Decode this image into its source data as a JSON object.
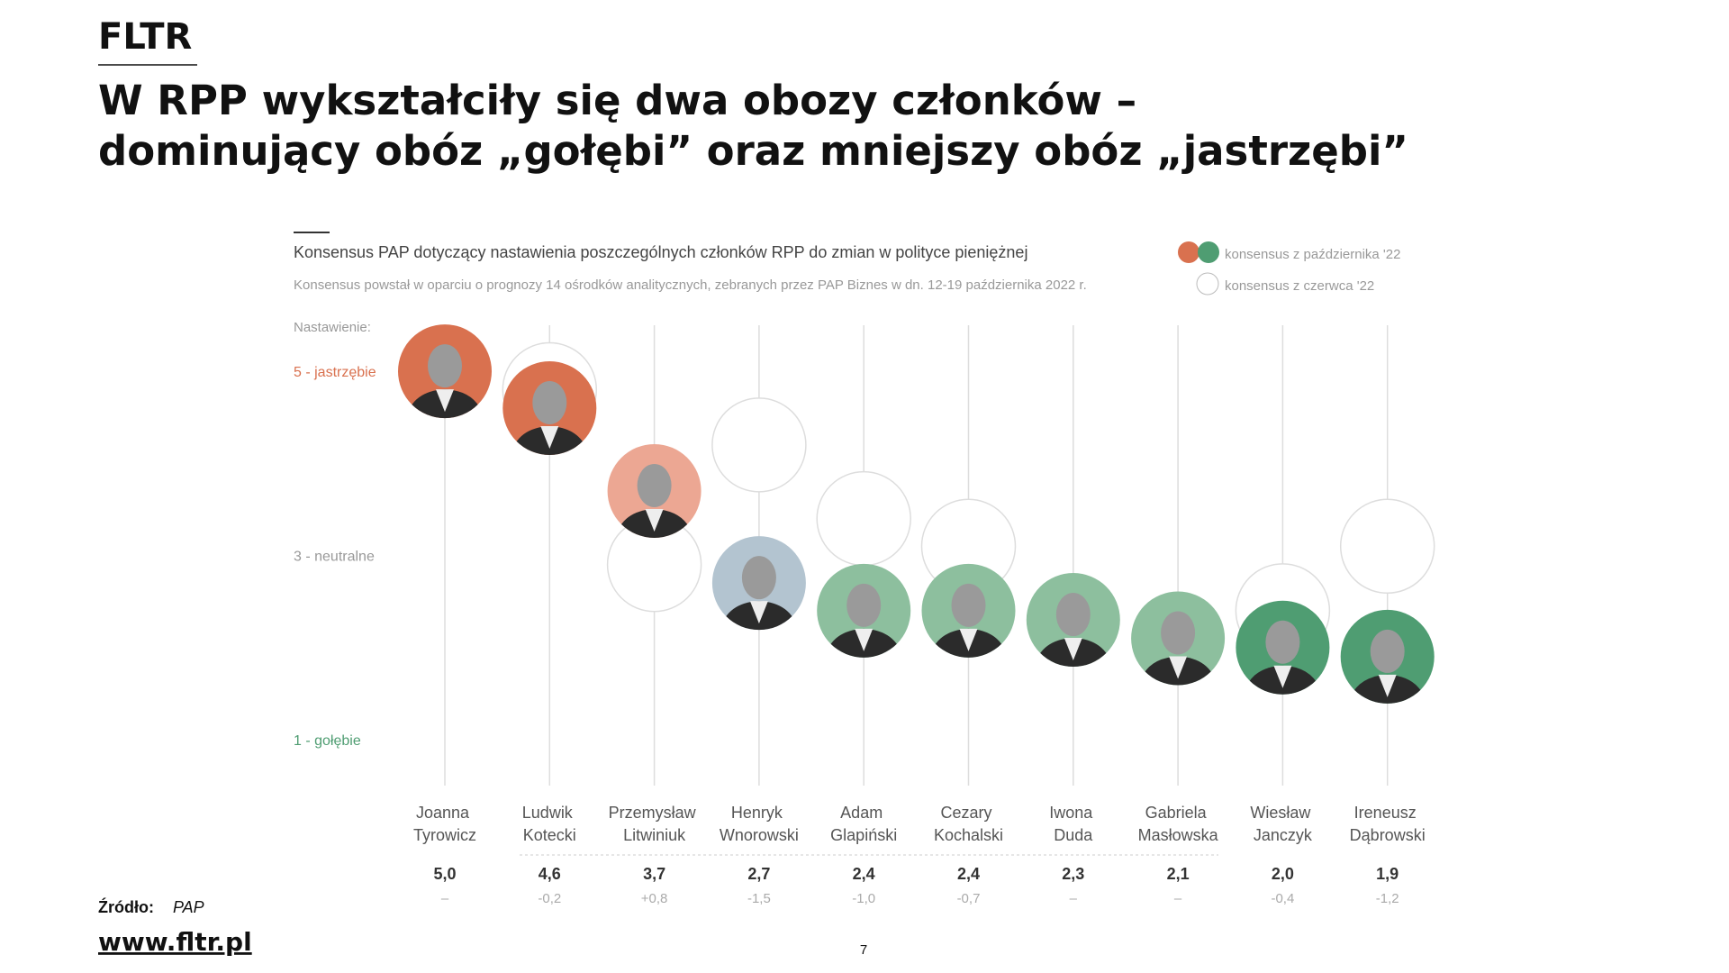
{
  "header": {
    "brand": "FLTR",
    "title_lines": [
      "W RPP wykształciły się dwa obozy członków –",
      "dominujący obóz „gołębi” oraz mniejszy obóz „jastrzębi”"
    ]
  },
  "chart_data": {
    "type": "dot",
    "title": "Konsensus PAP dotyczący nastawienia poszczególnych członków RPP do zmian w polityce pieniężnej",
    "subtitle": "Konsensus powstał w oparciu o prognozy 14 ośrodków analitycznych, zebranych przez PAP Biznes w dn. 12-19 października 2022 r.",
    "y_label": "Nastawienie:",
    "categories": [
      "Joanna Tyrowicz",
      "Ludwik Kotecki",
      "Przemysław Litwiniuk",
      "Henryk Wnorowski",
      "Adam Glapiński",
      "Cezary Kochalski",
      "Iwona Duda",
      "Gabriela Masłowska",
      "Wiesław Janczyk",
      "Ireneusz Dąbrowski"
    ],
    "series": [
      {
        "name": "konsensus z października '22",
        "colors": [
          "#d9714f",
          "#d9714f",
          "#eca793",
          "#b3c4d0",
          "#8dbf9e",
          "#8dbf9e",
          "#8dbf9e",
          "#8dbf9e",
          "#4f9d72",
          "#4f9d72"
        ],
        "values": [
          5.0,
          4.6,
          3.7,
          2.7,
          2.4,
          2.4,
          2.3,
          2.1,
          2.0,
          1.9
        ],
        "value_labels": [
          "5,0",
          "4,6",
          "3,7",
          "2,7",
          "2,4",
          "2,4",
          "2,3",
          "2,1",
          "2,0",
          "1,9"
        ]
      },
      {
        "name": "konsensus z czerwca '22",
        "color": "#ffffff",
        "values": [
          null,
          4.8,
          2.9,
          4.2,
          3.4,
          3.1,
          null,
          null,
          2.4,
          3.1
        ]
      }
    ],
    "changes": {
      "values": [
        null,
        -0.2,
        0.8,
        -1.5,
        -1.0,
        -0.7,
        null,
        null,
        -0.4,
        -1.2
      ],
      "value_labels": [
        "–",
        "-0,2",
        "+0,8",
        "-1,5",
        "-1,0",
        "-0,7",
        "–",
        "–",
        "-0,4",
        "-1,2"
      ]
    },
    "ylim": [
      0.5,
      5.5
    ],
    "yticks": [
      {
        "value": 5,
        "label": "5 - jastrzębie"
      },
      {
        "value": 3,
        "label": "3 - neutralne"
      },
      {
        "value": 1,
        "label": "1 - gołębie"
      }
    ]
  },
  "footer": {
    "source_label": "Źródło:",
    "source": "PAP",
    "url": "www.fltr.pl",
    "page": "7"
  }
}
